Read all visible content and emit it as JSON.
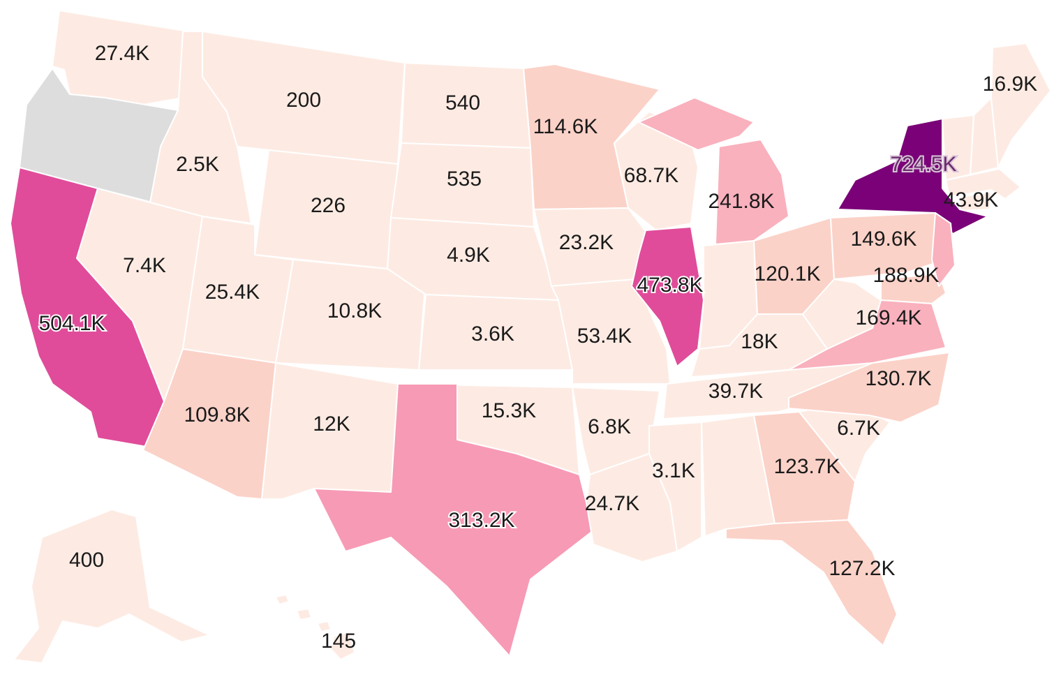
{
  "map": {
    "type": "choropleth",
    "region": "United States",
    "colors": {
      "no_data": "#dddddd",
      "scale": [
        "#fdebe3",
        "#fbd2c8",
        "#f9b1bd",
        "#f79ab5",
        "#e04c9a",
        "#7a0177"
      ]
    },
    "states": [
      {
        "id": "WA",
        "label": "27.4K",
        "value": 27400
      },
      {
        "id": "OR",
        "label": "",
        "value": null
      },
      {
        "id": "CA",
        "label": "504.1K",
        "value": 504100
      },
      {
        "id": "ID",
        "label": "2.5K",
        "value": 2500
      },
      {
        "id": "NV",
        "label": "7.4K",
        "value": 7400
      },
      {
        "id": "MT",
        "label": "200",
        "value": 200
      },
      {
        "id": "WY",
        "label": "226",
        "value": 226
      },
      {
        "id": "UT",
        "label": "25.4K",
        "value": 25400
      },
      {
        "id": "AZ",
        "label": "109.8K",
        "value": 109800
      },
      {
        "id": "CO",
        "label": "10.8K",
        "value": 10800
      },
      {
        "id": "NM",
        "label": "12K",
        "value": 12000
      },
      {
        "id": "ND",
        "label": "540",
        "value": 540
      },
      {
        "id": "SD",
        "label": "535",
        "value": 535
      },
      {
        "id": "NE",
        "label": "4.9K",
        "value": 4900
      },
      {
        "id": "KS",
        "label": "3.6K",
        "value": 3600
      },
      {
        "id": "OK",
        "label": "15.3K",
        "value": 15300
      },
      {
        "id": "TX",
        "label": "313.2K",
        "value": 313200
      },
      {
        "id": "MN",
        "label": "114.6K",
        "value": 114600
      },
      {
        "id": "IA",
        "label": "23.2K",
        "value": 23200
      },
      {
        "id": "MO",
        "label": "53.4K",
        "value": 53400
      },
      {
        "id": "AR",
        "label": "6.8K",
        "value": 6800
      },
      {
        "id": "LA",
        "label": "24.7K",
        "value": 24700
      },
      {
        "id": "WI",
        "label": "68.7K",
        "value": 68700
      },
      {
        "id": "IL",
        "label": "473.8K",
        "value": 473800
      },
      {
        "id": "MI",
        "label": "241.8K",
        "value": 241800
      },
      {
        "id": "IN",
        "label": "",
        "value": null
      },
      {
        "id": "OH",
        "label": "120.1K",
        "value": 120100
      },
      {
        "id": "KY",
        "label": "18K",
        "value": 18000
      },
      {
        "id": "TN",
        "label": "39.7K",
        "value": 39700
      },
      {
        "id": "MS",
        "label": "3.1K",
        "value": 3100
      },
      {
        "id": "AL",
        "label": "",
        "value": null
      },
      {
        "id": "GA",
        "label": "123.7K",
        "value": 123700
      },
      {
        "id": "FL",
        "label": "127.2K",
        "value": 127200
      },
      {
        "id": "SC",
        "label": "6.7K",
        "value": 6700
      },
      {
        "id": "NC",
        "label": "130.7K",
        "value": 130700
      },
      {
        "id": "VA",
        "label": "169.4K",
        "value": 169400
      },
      {
        "id": "WV",
        "label": "",
        "value": null
      },
      {
        "id": "PA",
        "label": "149.6K",
        "value": 149600
      },
      {
        "id": "NY",
        "label": "724.5K",
        "value": 724500
      },
      {
        "id": "NJ",
        "label": "188.9K",
        "value": 188900
      },
      {
        "id": "MA",
        "label": "43.9K",
        "value": 43900
      },
      {
        "id": "ME",
        "label": "16.9K",
        "value": 16900
      },
      {
        "id": "AK",
        "label": "400",
        "value": 400
      },
      {
        "id": "HI",
        "label": "145",
        "value": 145
      }
    ]
  }
}
